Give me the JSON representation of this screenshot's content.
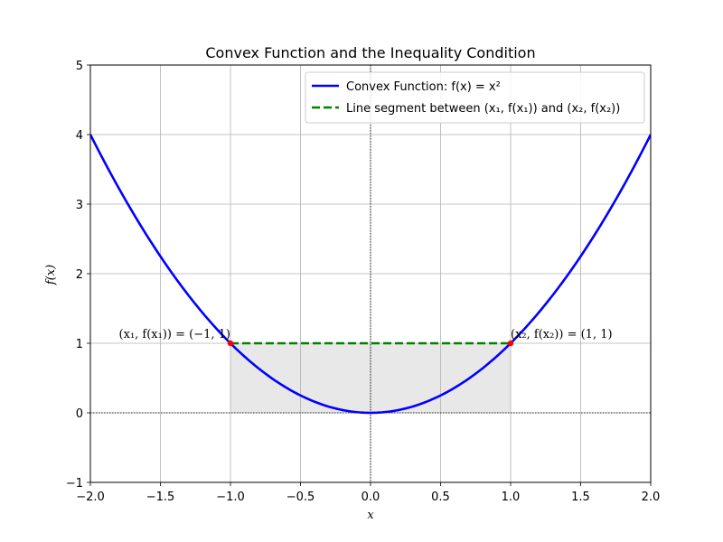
{
  "chart_data": {
    "type": "line",
    "title": "Convex Function and the Inequality Condition",
    "xlabel": "x",
    "ylabel": "f(x)",
    "xlim": [
      -2.0,
      2.0
    ],
    "ylim": [
      -1,
      5
    ],
    "xticks": [
      -2.0,
      -1.5,
      -1.0,
      -0.5,
      0.0,
      0.5,
      1.0,
      1.5,
      2.0
    ],
    "xtick_labels": [
      "−2.0",
      "−1.5",
      "−1.0",
      "−0.5",
      "0.0",
      "0.5",
      "1.0",
      "1.5",
      "2.0"
    ],
    "yticks": [
      -1,
      0,
      1,
      2,
      3,
      4,
      5
    ],
    "ytick_labels": [
      "−1",
      "0",
      "1",
      "2",
      "3",
      "4",
      "5"
    ],
    "grid": true,
    "legend_position": "top-right",
    "series": [
      {
        "name": "Convex Function: f(x) = x²",
        "style": "solid",
        "color": "#0000ff",
        "function": "x^2",
        "x_range": [
          -2.0,
          2.0
        ]
      },
      {
        "name": "Line segment between (x₁, f(x₁)) and (x₂, f(x₂))",
        "style": "dashed",
        "color": "#008000",
        "x": [
          -1,
          1
        ],
        "y": [
          1,
          1
        ]
      }
    ],
    "shaded_region": {
      "x_from": -1,
      "x_to": 1,
      "y_bottom": 0,
      "y_top": 1,
      "color": "#e8e8e8"
    },
    "points": [
      {
        "x": -1,
        "y": 1,
        "color": "#ff0000",
        "label": "(x₁, f(x₁)) = (−1, 1)",
        "label_anchor": "end"
      },
      {
        "x": 1,
        "y": 1,
        "color": "#ff0000",
        "label": "(x₂, f(x₂)) = (1, 1)",
        "label_anchor": "start"
      }
    ],
    "reference_lines": [
      {
        "orientation": "horizontal",
        "value": 0,
        "style": "dotted",
        "color": "#000000"
      },
      {
        "orientation": "vertical",
        "value": 0,
        "style": "dotted",
        "color": "#000000"
      }
    ]
  }
}
